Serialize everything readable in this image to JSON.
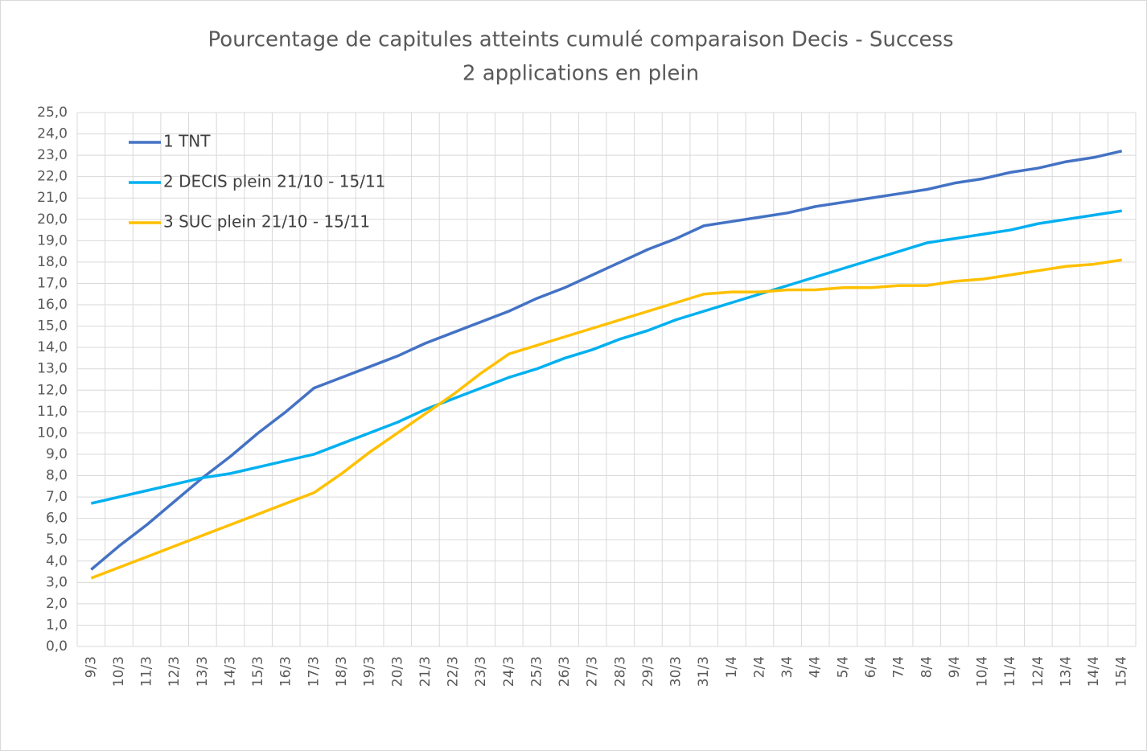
{
  "chart_data": {
    "type": "line",
    "title": [
      "Pourcentage de capitules atteints cumulé comparaison Decis -  Success",
      "2 applications en plein"
    ],
    "categories": [
      "9/3",
      "10/3",
      "11/3",
      "12/3",
      "13/3",
      "14/3",
      "15/3",
      "16/3",
      "17/3",
      "18/3",
      "19/3",
      "20/3",
      "21/3",
      "22/3",
      "23/3",
      "24/3",
      "25/3",
      "26/3",
      "27/3",
      "28/3",
      "29/3",
      "30/3",
      "31/3",
      "1/4",
      "2/4",
      "3/4",
      "4/4",
      "5/4",
      "6/4",
      "7/4",
      "8/4",
      "9/4",
      "10/4",
      "11/4",
      "12/4",
      "13/4",
      "14/4",
      "15/4"
    ],
    "series": [
      {
        "name": "1 TNT",
        "color": "#4472c4",
        "values": [
          3.6,
          4.7,
          5.7,
          6.8,
          7.9,
          8.9,
          10.0,
          11.0,
          12.1,
          12.6,
          13.1,
          13.6,
          14.2,
          14.7,
          15.2,
          15.7,
          16.3,
          16.8,
          17.4,
          18.0,
          18.6,
          19.1,
          19.7,
          19.9,
          20.1,
          20.3,
          20.6,
          20.8,
          21.0,
          21.2,
          21.4,
          21.7,
          21.9,
          22.2,
          22.4,
          22.7,
          22.9,
          23.2
        ]
      },
      {
        "name": "2 DECIS plein 21/10 - 15/11",
        "color": "#00b0f0",
        "values": [
          6.7,
          7.0,
          7.3,
          7.6,
          7.9,
          8.1,
          8.4,
          8.7,
          9.0,
          9.5,
          10.0,
          10.5,
          11.1,
          11.6,
          12.1,
          12.6,
          13.0,
          13.5,
          13.9,
          14.4,
          14.8,
          15.3,
          15.7,
          16.1,
          16.5,
          16.9,
          17.3,
          17.7,
          18.1,
          18.5,
          18.9,
          19.1,
          19.3,
          19.5,
          19.8,
          20.0,
          20.2,
          20.4
        ]
      },
      {
        "name": "3 SUC plein 21/10 - 15/11",
        "color": "#ffc000",
        "values": [
          3.2,
          3.7,
          4.2,
          4.7,
          5.2,
          5.7,
          6.2,
          6.7,
          7.2,
          8.1,
          9.1,
          10.0,
          10.9,
          11.8,
          12.8,
          13.7,
          14.1,
          14.5,
          14.9,
          15.3,
          15.7,
          16.1,
          16.5,
          16.6,
          16.6,
          16.7,
          16.7,
          16.8,
          16.8,
          16.9,
          16.9,
          17.1,
          17.2,
          17.4,
          17.6,
          17.8,
          17.9,
          18.1
        ]
      }
    ],
    "ylim": [
      0,
      25
    ],
    "yticks": [
      {
        "value": 0,
        "label": "0,0"
      },
      {
        "value": 1,
        "label": "1,0"
      },
      {
        "value": 2,
        "label": "2,0"
      },
      {
        "value": 3,
        "label": "3,0"
      },
      {
        "value": 4,
        "label": "4,0"
      },
      {
        "value": 5,
        "label": "5,0"
      },
      {
        "value": 6,
        "label": "6,0"
      },
      {
        "value": 7,
        "label": "7,0"
      },
      {
        "value": 8,
        "label": "8,0"
      },
      {
        "value": 9,
        "label": "9,0"
      },
      {
        "value": 10,
        "label": "10,0"
      },
      {
        "value": 11,
        "label": "11,0"
      },
      {
        "value": 12,
        "label": "12,0"
      },
      {
        "value": 13,
        "label": "13,0"
      },
      {
        "value": 14,
        "label": "14,0"
      },
      {
        "value": 15,
        "label": "15,0"
      },
      {
        "value": 16,
        "label": "16,0"
      },
      {
        "value": 17,
        "label": "17,0"
      },
      {
        "value": 18,
        "label": "18,0"
      },
      {
        "value": 19,
        "label": "19,0"
      },
      {
        "value": 20,
        "label": "20,0"
      },
      {
        "value": 21,
        "label": "21,0"
      },
      {
        "value": 22,
        "label": "22,0"
      },
      {
        "value": 23,
        "label": "23,0"
      },
      {
        "value": 24,
        "label": "24,0"
      },
      {
        "value": 25,
        "label": "25,0"
      }
    ],
    "grid": true,
    "legend": "top-left"
  }
}
